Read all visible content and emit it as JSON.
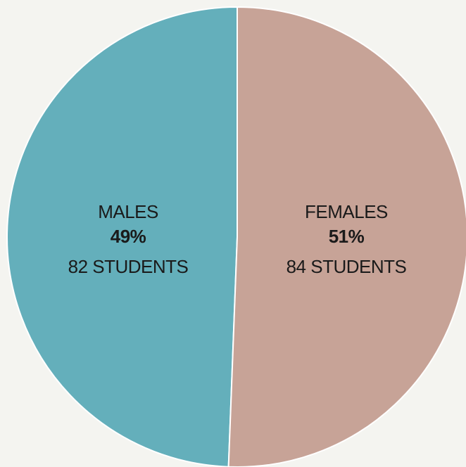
{
  "chart_data": {
    "type": "pie",
    "title": "",
    "slices": [
      {
        "label": "MALES",
        "percent_label": "49%",
        "count_label": "82 STUDENTS",
        "value": 82,
        "color": "#64afbb"
      },
      {
        "label": "FEMALES",
        "percent_label": "51%",
        "count_label": "84 STUDENTS",
        "value": 84,
        "color": "#c7a397"
      }
    ],
    "start_angle_deg": 0,
    "direction": "counterclockwise",
    "background": "#f4f4f0",
    "separator_color": "#ffffff"
  }
}
